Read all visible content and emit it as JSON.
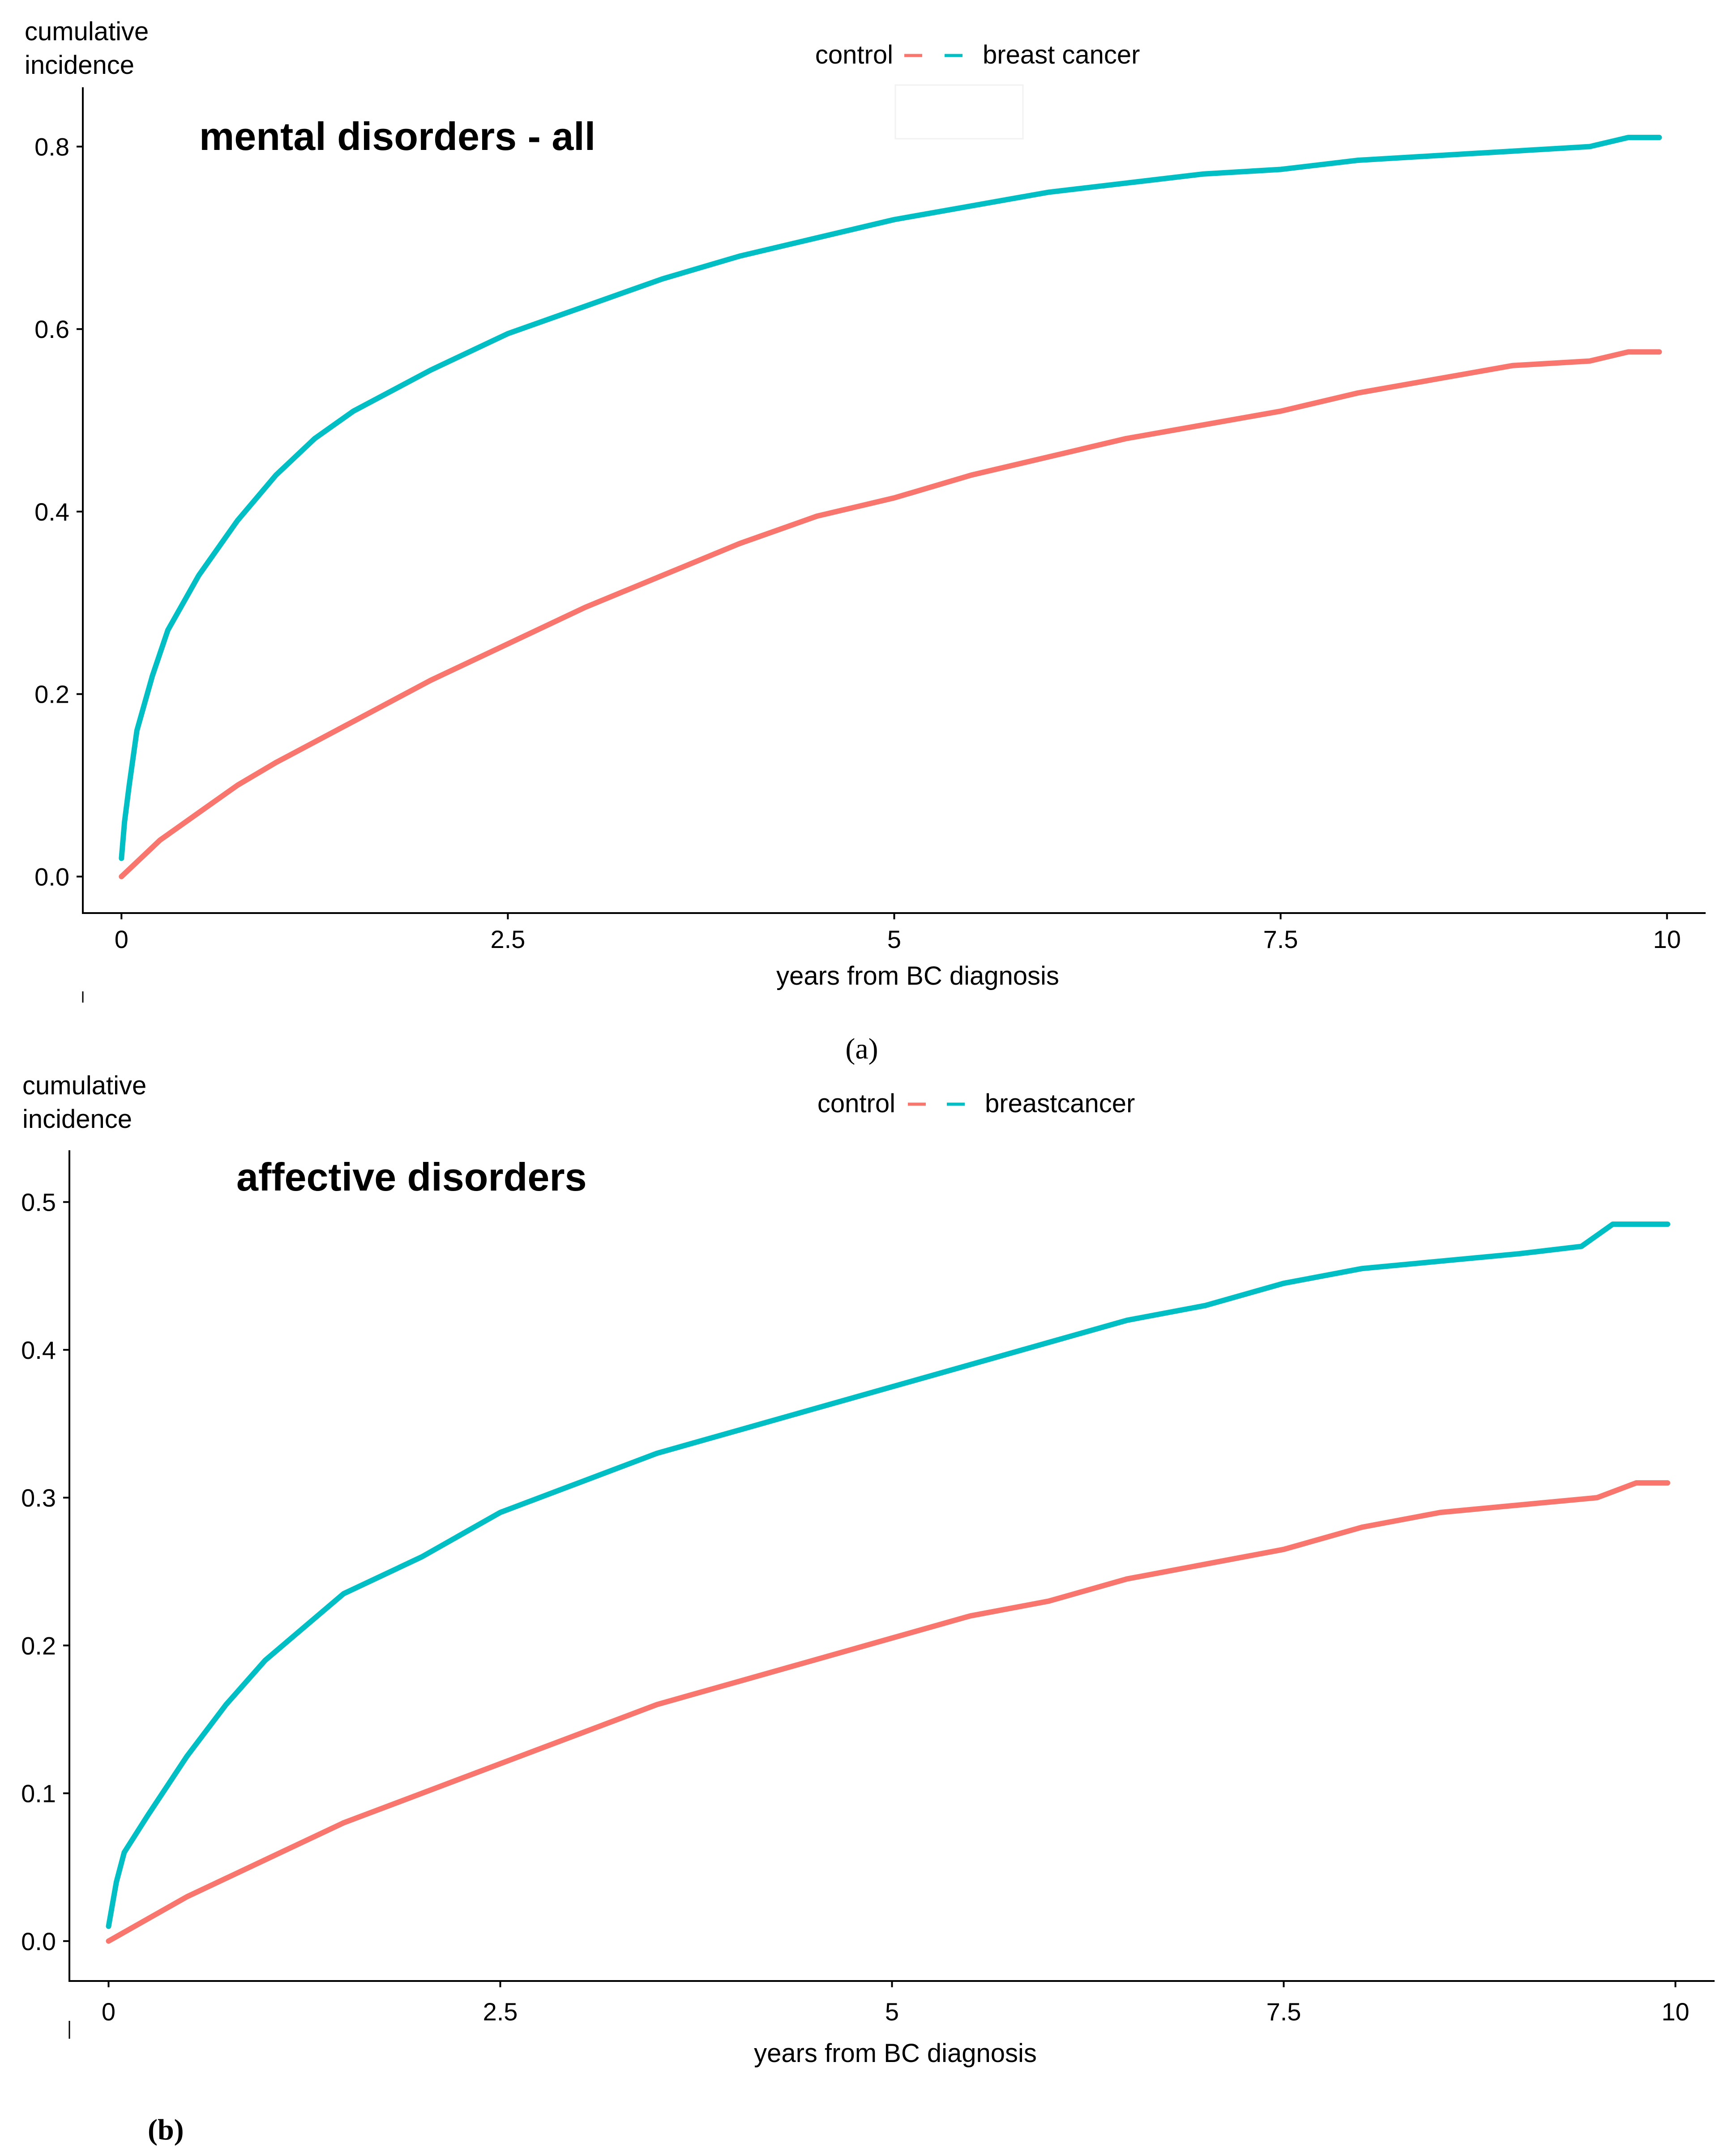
{
  "figure": {
    "colors": {
      "control": "#f8766d",
      "breast_cancer": "#00bfc4",
      "axis": "#000000"
    }
  },
  "chart_data": [
    {
      "type": "line",
      "panel_label": "(a)",
      "title": "mental disorders - all",
      "xlabel": "years from BC diagnosis",
      "ylabel": [
        "cumulative",
        "incidence"
      ],
      "xlim": [
        -0.25,
        10.25
      ],
      "ylim": [
        -0.04,
        0.865
      ],
      "x_ticks": [
        0,
        2.5,
        5,
        7.5,
        10
      ],
      "x_tick_labels": [
        "0",
        "2.5",
        "5",
        "7.5",
        "10"
      ],
      "y_ticks": [
        0.0,
        0.2,
        0.4,
        0.6,
        0.8
      ],
      "y_tick_labels": [
        "0.0",
        "0.2",
        "0.4",
        "0.6",
        "0.8"
      ],
      "grid": false,
      "legend": {
        "placement": "top-center",
        "entries": [
          "control",
          "breast cancer"
        ]
      },
      "series": [
        {
          "name": "control",
          "color": "#f8766d",
          "x": [
            0,
            0.25,
            0.5,
            0.75,
            1,
            1.5,
            2,
            2.5,
            3,
            3.5,
            4,
            4.5,
            5,
            5.5,
            6,
            6.5,
            7,
            7.5,
            8,
            8.5,
            9,
            9.5,
            9.75,
            9.95
          ],
          "y": [
            0.0,
            0.04,
            0.07,
            0.1,
            0.125,
            0.17,
            0.215,
            0.255,
            0.295,
            0.33,
            0.365,
            0.395,
            0.415,
            0.44,
            0.46,
            0.48,
            0.495,
            0.51,
            0.53,
            0.545,
            0.56,
            0.565,
            0.575,
            0.575
          ]
        },
        {
          "name": "breast cancer",
          "color": "#00bfc4",
          "x": [
            0,
            0.02,
            0.05,
            0.1,
            0.2,
            0.3,
            0.5,
            0.75,
            1,
            1.25,
            1.5,
            2,
            2.5,
            3,
            3.5,
            4,
            4.5,
            5,
            5.5,
            6,
            6.5,
            7,
            7.5,
            8,
            8.5,
            9,
            9.5,
            9.75,
            9.95
          ],
          "y": [
            0.02,
            0.06,
            0.1,
            0.16,
            0.22,
            0.27,
            0.33,
            0.39,
            0.44,
            0.48,
            0.51,
            0.555,
            0.595,
            0.625,
            0.655,
            0.68,
            0.7,
            0.72,
            0.735,
            0.75,
            0.76,
            0.77,
            0.775,
            0.785,
            0.79,
            0.795,
            0.8,
            0.81,
            0.81
          ]
        }
      ]
    },
    {
      "type": "line",
      "panel_label": "(b)",
      "title": "affective disorders",
      "xlabel": "years from BC diagnosis",
      "ylabel": [
        "cumulative",
        "incidence"
      ],
      "xlim": [
        -0.25,
        10.25
      ],
      "ylim": [
        -0.027,
        0.535
      ],
      "x_ticks": [
        0,
        2.5,
        5,
        7.5,
        10
      ],
      "x_tick_labels": [
        "0",
        "2.5",
        "5",
        "7.5",
        "10"
      ],
      "y_ticks": [
        0.0,
        0.1,
        0.2,
        0.3,
        0.4,
        0.5
      ],
      "y_tick_labels": [
        "0.0",
        "0.1",
        "0.2",
        "0.3",
        "0.4",
        "0.5"
      ],
      "grid": false,
      "legend": {
        "placement": "top-center",
        "entries": [
          "control",
          "breastcancer"
        ]
      },
      "series": [
        {
          "name": "control",
          "color": "#f8766d",
          "x": [
            0,
            0.5,
            1,
            1.5,
            2,
            2.5,
            3,
            3.5,
            4,
            4.5,
            5,
            5.5,
            6,
            6.5,
            7,
            7.5,
            8,
            8.5,
            9,
            9.5,
            9.75,
            9.95
          ],
          "y": [
            0.0,
            0.03,
            0.055,
            0.08,
            0.1,
            0.12,
            0.14,
            0.16,
            0.175,
            0.19,
            0.205,
            0.22,
            0.23,
            0.245,
            0.255,
            0.265,
            0.28,
            0.29,
            0.295,
            0.3,
            0.31,
            0.31
          ]
        },
        {
          "name": "breastcancer",
          "color": "#00bfc4",
          "x": [
            0,
            0.05,
            0.1,
            0.25,
            0.5,
            0.75,
            1,
            1.5,
            2,
            2.5,
            3,
            3.5,
            4,
            4.5,
            5,
            5.5,
            6,
            6.5,
            7,
            7.5,
            8,
            8.5,
            9,
            9.4,
            9.6,
            9.75,
            9.95
          ],
          "y": [
            0.01,
            0.04,
            0.06,
            0.085,
            0.125,
            0.16,
            0.19,
            0.235,
            0.26,
            0.29,
            0.31,
            0.33,
            0.345,
            0.36,
            0.375,
            0.39,
            0.405,
            0.42,
            0.43,
            0.445,
            0.455,
            0.46,
            0.465,
            0.47,
            0.485,
            0.485,
            0.485
          ]
        }
      ]
    }
  ]
}
